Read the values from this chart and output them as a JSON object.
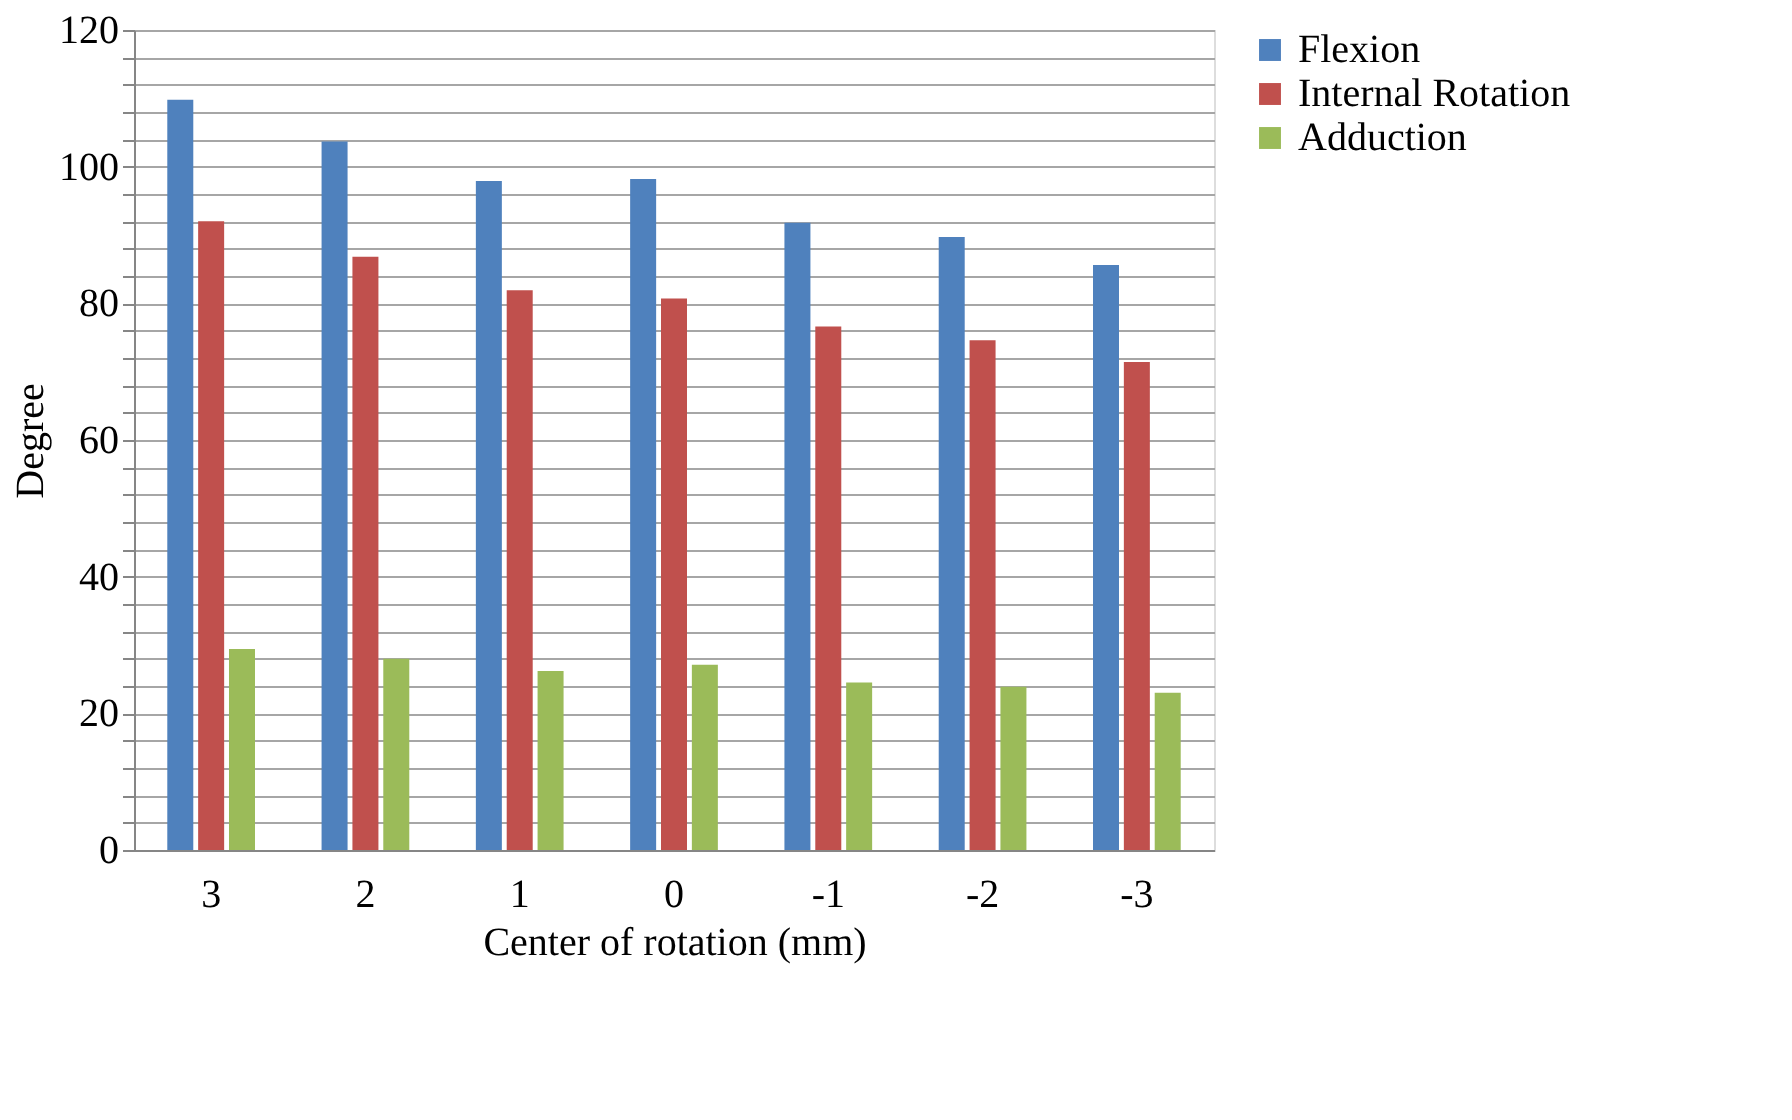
{
  "chart_data": {
    "type": "bar",
    "xlabel": "Center of rotation (mm)",
    "ylabel": "Degree",
    "categories": [
      "3",
      "2",
      "1",
      "0",
      "-1",
      "-2",
      "-3"
    ],
    "series": [
      {
        "name": "Flexion",
        "color": "#4f81bd",
        "values": [
          109.8,
          103.7,
          97.9,
          98.2,
          91.8,
          89.7,
          85.6
        ]
      },
      {
        "name": "Internal Rotation",
        "color": "#c0504d",
        "values": [
          92.0,
          86.8,
          81.9,
          80.7,
          76.6,
          74.6,
          71.4
        ]
      },
      {
        "name": "Adduction",
        "color": "#9bbb59",
        "values": [
          29.4,
          28.0,
          26.2,
          27.1,
          24.5,
          23.9,
          23.0
        ]
      }
    ],
    "ylim": [
      0,
      120
    ],
    "yticks": [
      0,
      {
        "value": 4,
        "label": null
      },
      {
        "value": 8,
        "label": null
      },
      {
        "value": 12,
        "label": null
      },
      {
        "value": 16,
        "label": null
      },
      20,
      {
        "value": 24,
        "label": null
      },
      {
        "value": 28,
        "label": null
      },
      {
        "value": 32,
        "label": null
      },
      {
        "value": 36,
        "label": null
      },
      40,
      {
        "value": 44,
        "label": null
      },
      {
        "value": 48,
        "label": null
      },
      {
        "value": 52,
        "label": null
      },
      {
        "value": 56,
        "label": null
      },
      60,
      {
        "value": 64,
        "label": null
      },
      {
        "value": 68,
        "label": null
      },
      {
        "value": 72,
        "label": null
      },
      {
        "value": 76,
        "label": null
      },
      80,
      {
        "value": 84,
        "label": null
      },
      {
        "value": 88,
        "label": null
      },
      {
        "value": 92,
        "label": null
      },
      {
        "value": 96,
        "label": null
      },
      100,
      {
        "value": 104,
        "label": null
      },
      {
        "value": 108,
        "label": null
      },
      {
        "value": 112,
        "label": null
      },
      {
        "value": 116,
        "label": null
      },
      120
    ],
    "grid": "y",
    "legend": "right"
  }
}
